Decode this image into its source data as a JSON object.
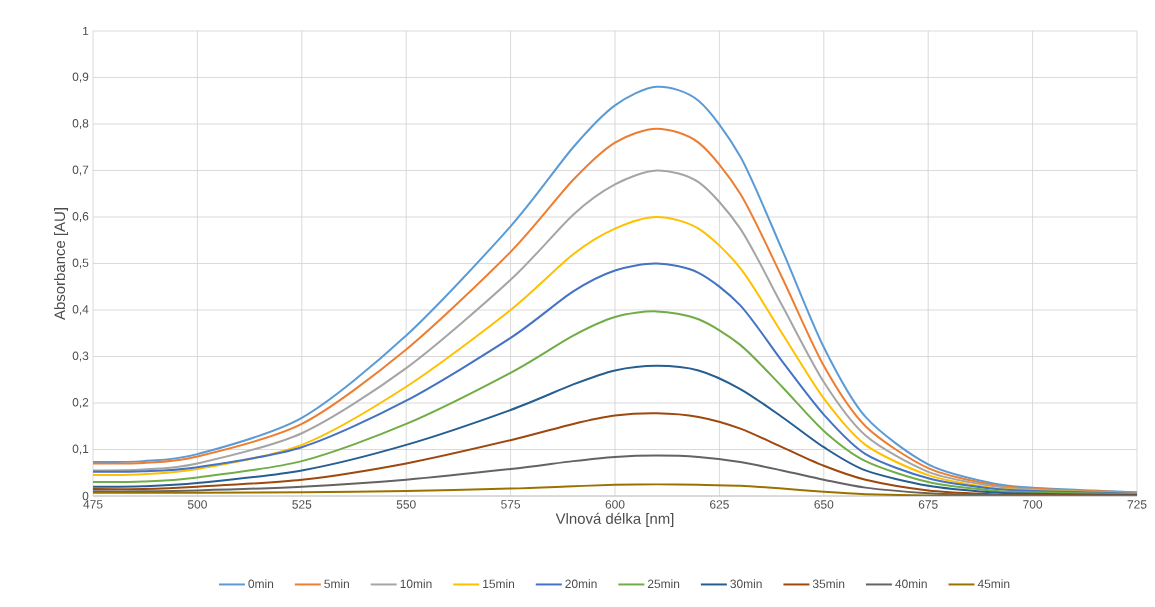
{
  "chart_data": {
    "type": "line",
    "xlabel": "Vlnová délka [nm]",
    "ylabel": "Absorbance [AU]",
    "x": [
      475,
      487,
      500,
      525,
      550,
      575,
      590,
      600,
      610,
      620,
      630,
      640,
      650,
      660,
      675,
      690,
      700,
      725
    ],
    "series": [
      {
        "name": "0min",
        "color": "#5b9bd5",
        "values": [
          0.073,
          0.075,
          0.09,
          0.168,
          0.345,
          0.58,
          0.75,
          0.84,
          0.88,
          0.85,
          0.73,
          0.53,
          0.32,
          0.17,
          0.068,
          0.028,
          0.018,
          0.008
        ]
      },
      {
        "name": "5min",
        "color": "#ed7d31",
        "values": [
          0.07,
          0.071,
          0.085,
          0.155,
          0.315,
          0.525,
          0.68,
          0.76,
          0.79,
          0.76,
          0.65,
          0.47,
          0.28,
          0.15,
          0.06,
          0.025,
          0.016,
          0.007
        ]
      },
      {
        "name": "10min",
        "color": "#a5a5a5",
        "values": [
          0.055,
          0.057,
          0.07,
          0.135,
          0.275,
          0.465,
          0.605,
          0.67,
          0.7,
          0.675,
          0.575,
          0.41,
          0.245,
          0.13,
          0.052,
          0.022,
          0.014,
          0.006
        ]
      },
      {
        "name": "15min",
        "color": "#ffc000",
        "values": [
          0.045,
          0.047,
          0.058,
          0.11,
          0.235,
          0.4,
          0.52,
          0.575,
          0.6,
          0.575,
          0.49,
          0.35,
          0.21,
          0.11,
          0.045,
          0.018,
          0.012,
          0.005
        ]
      },
      {
        "name": "20min",
        "color": "#4472c4",
        "values": [
          0.052,
          0.053,
          0.062,
          0.105,
          0.205,
          0.34,
          0.44,
          0.485,
          0.5,
          0.48,
          0.41,
          0.29,
          0.175,
          0.09,
          0.038,
          0.016,
          0.011,
          0.005
        ]
      },
      {
        "name": "25min",
        "color": "#70ad47",
        "values": [
          0.03,
          0.031,
          0.04,
          0.075,
          0.155,
          0.265,
          0.345,
          0.385,
          0.397,
          0.38,
          0.325,
          0.235,
          0.14,
          0.075,
          0.03,
          0.012,
          0.008,
          0.004
        ]
      },
      {
        "name": "30min",
        "color": "#255e91",
        "values": [
          0.02,
          0.021,
          0.028,
          0.055,
          0.11,
          0.185,
          0.24,
          0.27,
          0.28,
          0.27,
          0.23,
          0.17,
          0.105,
          0.055,
          0.022,
          0.008,
          0.005,
          0.002
        ]
      },
      {
        "name": "35min",
        "color": "#9e480e",
        "values": [
          0.015,
          0.015,
          0.02,
          0.035,
          0.07,
          0.12,
          0.155,
          0.173,
          0.178,
          0.17,
          0.145,
          0.105,
          0.065,
          0.035,
          0.012,
          0.004,
          0.002,
          0.001
        ]
      },
      {
        "name": "40min",
        "color": "#636363",
        "values": [
          0.01,
          0.01,
          0.012,
          0.02,
          0.035,
          0.058,
          0.075,
          0.084,
          0.087,
          0.084,
          0.073,
          0.055,
          0.035,
          0.018,
          0.006,
          0.002,
          0.001,
          0
        ]
      },
      {
        "name": "45min",
        "color": "#997300",
        "values": [
          0.007,
          0.007,
          0.007,
          0.008,
          0.011,
          0.016,
          0.021,
          0.024,
          0.025,
          0.024,
          0.022,
          0.016,
          0.009,
          0.004,
          0.001,
          0,
          0,
          0
        ]
      }
    ],
    "xlim": [
      475,
      725
    ],
    "xticks": [
      475,
      500,
      525,
      550,
      575,
      600,
      625,
      650,
      675,
      700,
      725
    ],
    "ylim": [
      0,
      1
    ],
    "yticks": [
      0,
      {
        "value": 0.1,
        "label": "0,1"
      },
      {
        "value": 0.2,
        "label": "0,2"
      },
      {
        "value": 0.3,
        "label": "0,3"
      },
      {
        "value": 0.4,
        "label": "0,4"
      },
      {
        "value": 0.5,
        "label": "0,5"
      },
      {
        "value": 0.6,
        "label": "0,6"
      },
      {
        "value": 0.7,
        "label": "0,7"
      },
      {
        "value": 0.8,
        "label": "0,8"
      },
      {
        "value": 0.9,
        "label": "0,9"
      },
      1
    ],
    "grid": true,
    "legend": "bottom",
    "line_style": "solid"
  }
}
